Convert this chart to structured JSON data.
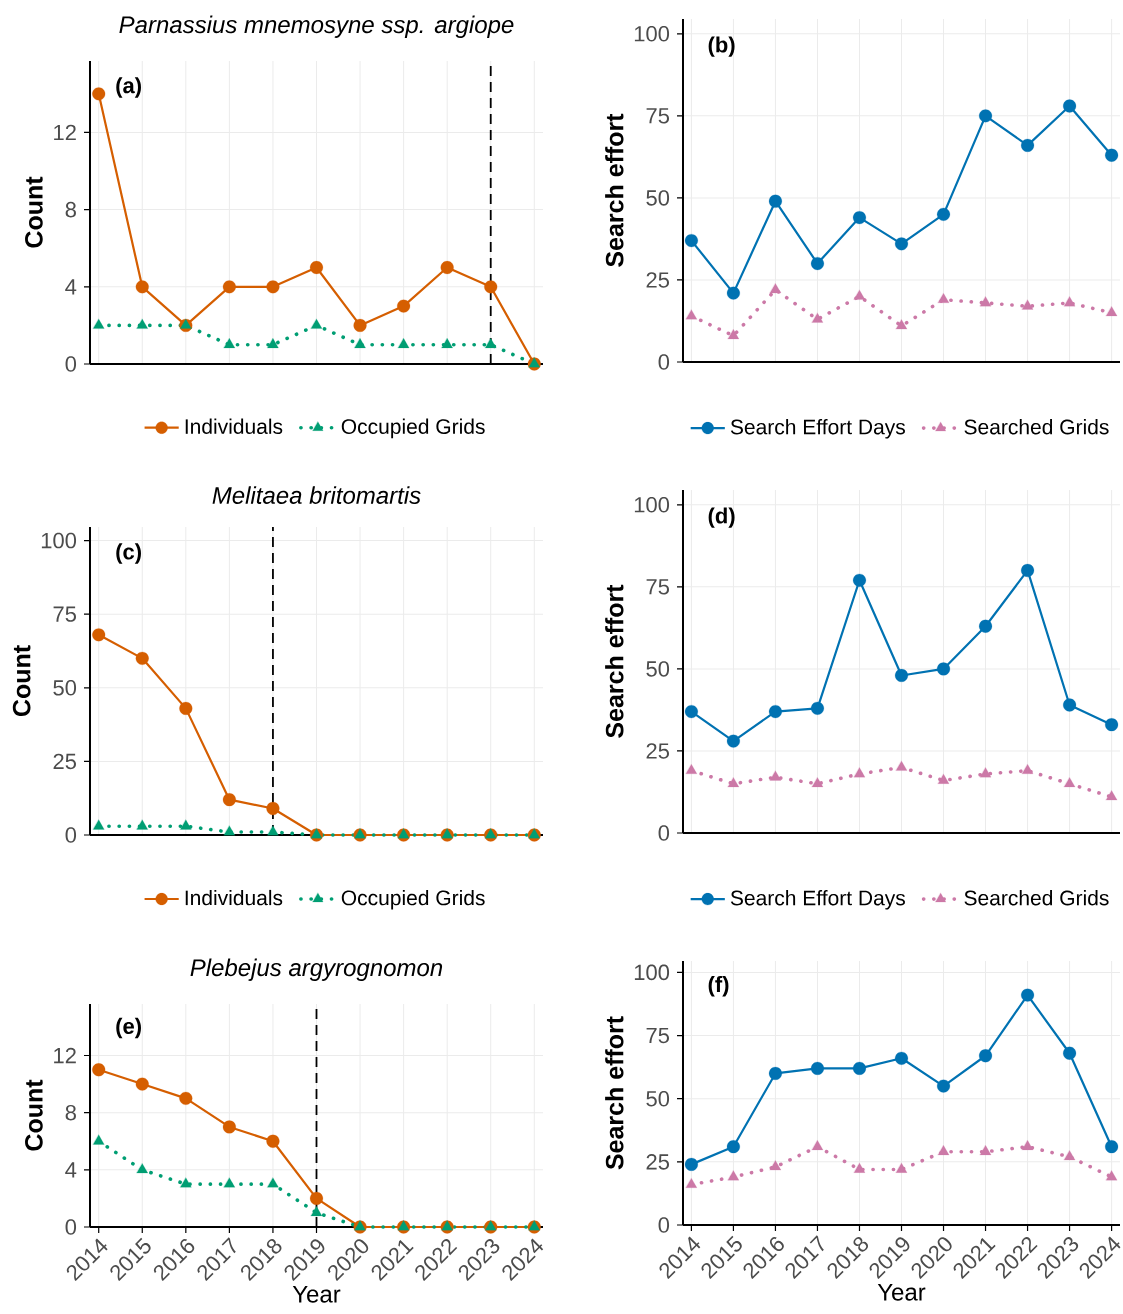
{
  "chart_data": [
    {
      "type": "line",
      "title": "Parnassius mnemosyne ssp. argiope",
      "ylabel": "Count",
      "annotations": [
        "(a)"
      ],
      "x": [
        2014,
        2015,
        2016,
        2017,
        2018,
        2019,
        2020,
        2021,
        2022,
        2023,
        2024
      ],
      "xlim": [
        2013.8,
        2024.2
      ],
      "xticks": [
        2014,
        2015,
        2016,
        2017,
        2018,
        2019,
        2020,
        2021,
        2022,
        2023,
        2024
      ],
      "ylim": [
        0,
        15.7
      ],
      "yticks": [
        0,
        4,
        8,
        12
      ],
      "grid": true,
      "legend": "bottom",
      "tick_labels": "y",
      "ref_lines": [
        {
          "axis": "x",
          "value": 2023,
          "line_style": "dashed"
        }
      ],
      "series": [
        {
          "name": "Individuals",
          "color": "#d55e00",
          "marker": "circle",
          "line_style": "solid",
          "values": [
            14,
            4,
            2,
            4,
            4,
            5,
            2,
            3,
            5,
            4,
            0
          ]
        },
        {
          "name": "Occupied Grids",
          "color": "#009e73",
          "marker": "triangle",
          "line_style": "dotted",
          "values": [
            2,
            2,
            2,
            1,
            1,
            2,
            1,
            1,
            1,
            1,
            0
          ]
        }
      ]
    },
    {
      "type": "line",
      "ylabel": "Search effort",
      "annotations": [
        "(b)"
      ],
      "x": [
        2014,
        2015,
        2016,
        2017,
        2018,
        2019,
        2020,
        2021,
        2022,
        2023,
        2024
      ],
      "xlim": [
        2013.8,
        2024.2
      ],
      "xticks": [
        2014,
        2015,
        2016,
        2017,
        2018,
        2019,
        2020,
        2021,
        2022,
        2023,
        2024
      ],
      "ylim": [
        0,
        104.5
      ],
      "yticks": [
        0,
        25,
        50,
        75,
        100
      ],
      "grid": true,
      "legend": "bottom",
      "tick_labels": "y",
      "series": [
        {
          "name": "Search Effort Days",
          "color": "#0072b2",
          "marker": "circle",
          "line_style": "solid",
          "values": [
            37,
            21,
            49,
            30,
            44,
            36,
            45,
            75,
            66,
            78,
            63
          ]
        },
        {
          "name": "Searched Grids",
          "color": "#cc79a7",
          "marker": "triangle",
          "line_style": "dotted",
          "values": [
            14,
            8,
            22,
            13,
            20,
            11,
            19,
            18,
            17,
            18,
            15
          ]
        }
      ]
    },
    {
      "type": "line",
      "title": "Melitaea britomartis",
      "ylabel": "Count",
      "annotations": [
        "(c)"
      ],
      "x": [
        2014,
        2015,
        2016,
        2017,
        2018,
        2019,
        2020,
        2021,
        2022,
        2023,
        2024
      ],
      "xlim": [
        2013.8,
        2024.2
      ],
      "xticks": [
        2014,
        2015,
        2016,
        2017,
        2018,
        2019,
        2020,
        2021,
        2022,
        2023,
        2024
      ],
      "ylim": [
        0,
        104.6
      ],
      "yticks": [
        0,
        25,
        50,
        75,
        100
      ],
      "grid": true,
      "legend": "bottom",
      "tick_labels": "y",
      "ref_lines": [
        {
          "axis": "x",
          "value": 2018,
          "line_style": "dashed"
        }
      ],
      "series": [
        {
          "name": "Individuals",
          "color": "#d55e00",
          "marker": "circle",
          "line_style": "solid",
          "values": [
            68,
            60,
            43,
            12,
            9,
            0,
            0,
            0,
            0,
            0,
            0
          ]
        },
        {
          "name": "Occupied Grids",
          "color": "#009e73",
          "marker": "triangle",
          "line_style": "dotted",
          "values": [
            3,
            3,
            3,
            1,
            1,
            0,
            0,
            0,
            0,
            0,
            0
          ]
        }
      ]
    },
    {
      "type": "line",
      "ylabel": "Search effort",
      "annotations": [
        "(d)"
      ],
      "x": [
        2014,
        2015,
        2016,
        2017,
        2018,
        2019,
        2020,
        2021,
        2022,
        2023,
        2024
      ],
      "xlim": [
        2013.8,
        2024.2
      ],
      "xticks": [
        2014,
        2015,
        2016,
        2017,
        2018,
        2019,
        2020,
        2021,
        2022,
        2023,
        2024
      ],
      "ylim": [
        0,
        104.5
      ],
      "yticks": [
        0,
        25,
        50,
        75,
        100
      ],
      "grid": true,
      "legend": "bottom",
      "tick_labels": "y",
      "series": [
        {
          "name": "Search Effort Days",
          "color": "#0072b2",
          "marker": "circle",
          "line_style": "solid",
          "values": [
            37,
            28,
            37,
            38,
            77,
            48,
            50,
            63,
            80,
            39,
            33
          ]
        },
        {
          "name": "Searched Grids",
          "color": "#cc79a7",
          "marker": "triangle",
          "line_style": "dotted",
          "values": [
            19,
            15,
            17,
            15,
            18,
            20,
            16,
            18,
            19,
            15,
            11
          ]
        }
      ]
    },
    {
      "type": "line",
      "title": "Plebejus argyrognomon",
      "xlabel": "Year",
      "ylabel": "Count",
      "annotations": [
        "(e)"
      ],
      "x": [
        2014,
        2015,
        2016,
        2017,
        2018,
        2019,
        2020,
        2021,
        2022,
        2023,
        2024
      ],
      "xlim": [
        2013.8,
        2024.2
      ],
      "xticks": [
        2014,
        2015,
        2016,
        2017,
        2018,
        2019,
        2020,
        2021,
        2022,
        2023,
        2024
      ],
      "ylim": [
        0,
        15.6
      ],
      "yticks": [
        0,
        4,
        8,
        12
      ],
      "grid": true,
      "ref_lines": [
        {
          "axis": "x",
          "value": 2019,
          "line_style": "dashed"
        }
      ],
      "series": [
        {
          "color": "#d55e00",
          "marker": "circle",
          "line_style": "solid",
          "values": [
            11,
            10,
            9,
            7,
            6,
            2,
            0,
            0,
            0,
            0,
            0
          ]
        },
        {
          "color": "#009e73",
          "marker": "triangle",
          "line_style": "dotted",
          "values": [
            6,
            4,
            3,
            3,
            3,
            1,
            0,
            0,
            0,
            0,
            0
          ]
        }
      ]
    },
    {
      "type": "line",
      "xlabel": "Year",
      "ylabel": "Search effort",
      "annotations": [
        "(f)"
      ],
      "x": [
        2014,
        2015,
        2016,
        2017,
        2018,
        2019,
        2020,
        2021,
        2022,
        2023,
        2024
      ],
      "xlim": [
        2013.8,
        2024.2
      ],
      "xticks": [
        2014,
        2015,
        2016,
        2017,
        2018,
        2019,
        2020,
        2021,
        2022,
        2023,
        2024
      ],
      "ylim": [
        0,
        104.5
      ],
      "yticks": [
        0,
        25,
        50,
        75,
        100
      ],
      "grid": true,
      "series": [
        {
          "color": "#0072b2",
          "marker": "circle",
          "line_style": "solid",
          "values": [
            24,
            31,
            60,
            62,
            62,
            66,
            55,
            67,
            91,
            68,
            31
          ]
        },
        {
          "color": "#cc79a7",
          "marker": "triangle",
          "line_style": "dotted",
          "values": [
            16,
            19,
            23,
            31,
            22,
            22,
            29,
            29,
            31,
            27,
            19
          ]
        }
      ]
    }
  ]
}
